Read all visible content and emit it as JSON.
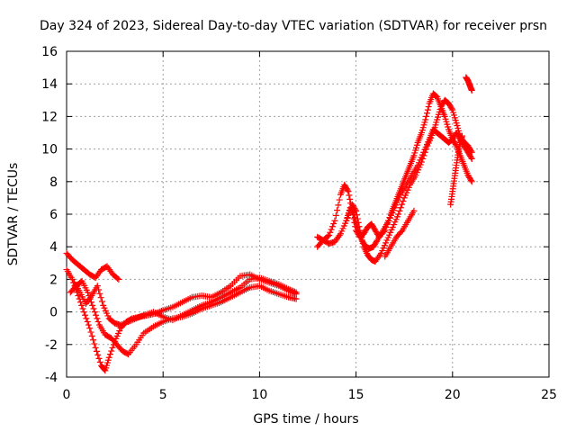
{
  "chart_data": {
    "type": "scatter",
    "title": "Day 324 of 2023, Sidereal Day-to-day VTEC variation (SDTVAR) for receiver prsn",
    "xlabel": "GPS time / hours",
    "ylabel": "SDTVAR / TECUs",
    "xlim": [
      0,
      25
    ],
    "ylim": [
      -4,
      16
    ],
    "xticks": [
      "0",
      "5",
      "10",
      "15",
      "20",
      "25"
    ],
    "yticks": [
      "-4",
      "-2",
      "0",
      "2",
      "4",
      "6",
      "8",
      "10",
      "12",
      "14",
      "16"
    ],
    "grid": true,
    "marker": "+",
    "color": "#ff0000",
    "series": [
      {
        "x": [
          0.0,
          0.3,
          0.6,
          0.9,
          1.2,
          1.5,
          1.8,
          2.1,
          2.4,
          2.7
        ],
        "y": [
          3.6,
          3.2,
          2.9,
          2.6,
          2.3,
          2.1,
          2.6,
          2.8,
          2.3,
          2.0
        ]
      },
      {
        "x": [
          0.0,
          0.3,
          0.6,
          0.9,
          1.2,
          1.5,
          1.8,
          2.0,
          2.2,
          2.5,
          2.8,
          3.1,
          3.4,
          3.8,
          4.2,
          4.6,
          5.0,
          5.5,
          6.0,
          6.5,
          7.0,
          7.5,
          8.0,
          8.5,
          9.0,
          9.5,
          10.0,
          10.5,
          11.0,
          11.5,
          11.9
        ],
        "y": [
          2.6,
          2.0,
          1.0,
          0.0,
          -1.0,
          -2.2,
          -3.3,
          -3.6,
          -2.8,
          -1.8,
          -1.0,
          -0.6,
          -0.4,
          -0.3,
          -0.2,
          -0.1,
          0.1,
          0.3,
          0.6,
          0.9,
          1.0,
          0.9,
          1.2,
          1.6,
          2.2,
          2.3,
          2.0,
          1.8,
          1.6,
          1.3,
          1.1
        ]
      },
      {
        "x": [
          0.2,
          0.5,
          0.8,
          1.1,
          1.4,
          1.7,
          2.0,
          2.3,
          2.6,
          2.9,
          3.2,
          3.6,
          4.0,
          4.5,
          5.0,
          5.5,
          6.0,
          6.5,
          7.0,
          7.5,
          8.0,
          8.5,
          9.0,
          9.5,
          10.0,
          10.5,
          11.0,
          11.5,
          11.9
        ],
        "y": [
          1.2,
          1.6,
          1.9,
          1.2,
          0.2,
          -0.8,
          -1.4,
          -1.6,
          -2.0,
          -2.4,
          -2.6,
          -2.0,
          -1.3,
          -0.9,
          -0.6,
          -0.4,
          -0.3,
          -0.1,
          0.2,
          0.4,
          0.6,
          0.9,
          1.2,
          1.5,
          1.6,
          1.3,
          1.1,
          0.9,
          0.8
        ]
      },
      {
        "x": [
          0.4,
          0.7,
          1.0,
          1.3,
          1.6,
          1.9,
          2.2,
          2.5,
          2.8,
          3.2,
          3.6,
          4.0,
          4.5,
          5.0,
          5.5,
          6.0,
          6.5,
          7.0,
          7.5,
          8.0,
          8.5,
          9.0,
          9.5,
          10.0,
          10.5,
          11.0,
          11.5,
          11.9
        ],
        "y": [
          1.8,
          1.2,
          0.5,
          1.0,
          1.6,
          0.4,
          -0.4,
          -0.7,
          -0.8,
          -0.6,
          -0.4,
          -0.2,
          0.0,
          -0.3,
          -0.5,
          -0.2,
          0.1,
          0.4,
          0.6,
          0.9,
          1.2,
          1.5,
          2.0,
          2.1,
          1.9,
          1.7,
          1.4,
          1.2
        ]
      },
      {
        "x": [
          13.0,
          13.3,
          13.6,
          13.9,
          14.2,
          14.4,
          14.6,
          14.8,
          15.0,
          15.2,
          15.4,
          15.6,
          15.8,
          16.0,
          16.2,
          16.5,
          16.8,
          17.0,
          17.2,
          17.4,
          17.6,
          17.8,
          18.0,
          18.2,
          18.4,
          18.6,
          18.8,
          19.0,
          19.2,
          19.4,
          19.6,
          19.8,
          20.0,
          20.2,
          20.4,
          20.6,
          20.8,
          21.0
        ],
        "y": [
          4.0,
          4.4,
          4.7,
          5.6,
          7.2,
          7.8,
          7.4,
          6.2,
          5.0,
          4.6,
          4.8,
          5.2,
          5.4,
          5.0,
          4.6,
          5.0,
          6.0,
          6.6,
          7.2,
          7.8,
          8.4,
          9.0,
          9.6,
          10.4,
          11.0,
          11.8,
          12.8,
          13.4,
          13.2,
          12.6,
          12.0,
          11.2,
          10.6,
          10.2,
          9.6,
          9.0,
          8.4,
          8.0
        ]
      },
      {
        "x": [
          13.0,
          13.3,
          13.6,
          13.9,
          14.2,
          14.5,
          14.8,
          15.0,
          15.2,
          15.4,
          15.6,
          15.8,
          16.0,
          16.3,
          16.6,
          16.9,
          17.2,
          17.5,
          17.8,
          18.1,
          18.4,
          18.7,
          19.0,
          19.2,
          19.4,
          19.6,
          19.8,
          20.0,
          20.2,
          20.4,
          20.6,
          20.8,
          21.0
        ],
        "y": [
          4.6,
          4.4,
          4.2,
          4.3,
          4.8,
          5.6,
          6.6,
          6.2,
          5.0,
          4.0,
          3.5,
          3.2,
          3.1,
          3.6,
          4.4,
          5.2,
          6.0,
          7.0,
          7.8,
          8.4,
          9.2,
          10.2,
          11.0,
          11.8,
          12.6,
          13.0,
          12.8,
          12.4,
          11.6,
          10.8,
          10.4,
          10.2,
          9.8
        ]
      },
      {
        "x": [
          14.5,
          14.7,
          14.9,
          15.1,
          15.3,
          15.5,
          15.7,
          15.9,
          16.1,
          16.4,
          16.7,
          17.0,
          17.3,
          17.6,
          17.9,
          18.2,
          18.5,
          18.8,
          19.0,
          19.2,
          19.4,
          19.6,
          19.8,
          20.0,
          20.2,
          20.4,
          20.6,
          20.8,
          21.0
        ],
        "y": [
          5.6,
          6.4,
          6.0,
          5.0,
          4.4,
          4.0,
          3.9,
          4.0,
          4.4,
          5.0,
          5.6,
          6.4,
          7.2,
          7.8,
          8.4,
          9.0,
          9.8,
          10.6,
          11.2,
          11.0,
          10.8,
          10.6,
          10.4,
          10.6,
          11.0,
          10.6,
          10.2,
          9.8,
          9.4
        ]
      },
      {
        "x": [
          16.5,
          16.8,
          17.1,
          17.4,
          17.7,
          18.0
        ],
        "y": [
          3.4,
          4.0,
          4.6,
          5.0,
          5.6,
          6.2
        ]
      },
      {
        "x": [
          19.9,
          20.0,
          20.1,
          20.2,
          20.3,
          20.4,
          20.5
        ],
        "y": [
          6.6,
          7.4,
          8.2,
          9.0,
          9.8,
          10.4,
          10.8
        ]
      },
      {
        "x": [
          20.7,
          20.8,
          20.9,
          21.0
        ],
        "y": [
          14.4,
          14.2,
          13.9,
          13.6
        ]
      }
    ]
  }
}
